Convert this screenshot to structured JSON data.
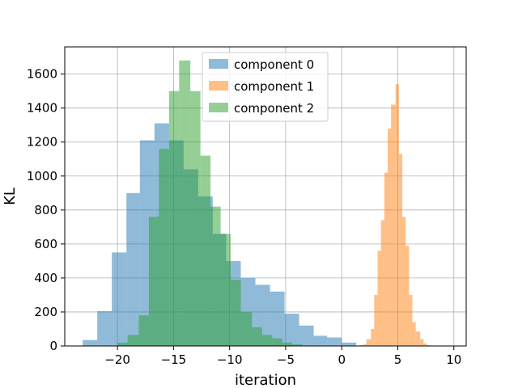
{
  "chart_data": {
    "type": "histogram",
    "xlabel": "iteration",
    "ylabel": "KL",
    "xlim": [
      -24.7,
      11.1
    ],
    "ylim": [
      0,
      1760
    ],
    "xticks": [
      -20,
      -15,
      -10,
      -5,
      0,
      5,
      10
    ],
    "yticks": [
      0,
      200,
      400,
      600,
      800,
      1000,
      1200,
      1400,
      1600
    ],
    "grid": true,
    "legend_position": "top-center",
    "series": [
      {
        "name": "component 0",
        "color": "#1f77b4",
        "opacity": 0.5,
        "bins": [
          -23.1,
          -21.8,
          -20.5,
          -19.2,
          -18.0,
          -16.7,
          -15.4,
          -14.1,
          -12.8,
          -11.5,
          -10.3,
          -9.0,
          -7.7,
          -6.4,
          -5.1,
          -3.8,
          -2.5,
          -1.3,
          0.0,
          1.3
        ],
        "counts": [
          35,
          205,
          550,
          900,
          1210,
          1310,
          1210,
          1040,
          880,
          660,
          500,
          400,
          360,
          320,
          190,
          120,
          60,
          50,
          20
        ]
      },
      {
        "name": "component 1",
        "color": "#ff7f0e",
        "opacity": 0.5,
        "bins": [
          1.6,
          1.9,
          2.2,
          2.6,
          2.9,
          3.2,
          3.5,
          3.8,
          4.1,
          4.4,
          4.8,
          5.1,
          5.4,
          5.7,
          6.0,
          6.3,
          6.6,
          7.0,
          7.3,
          7.6,
          7.9
        ],
        "counts": [
          5,
          10,
          40,
          100,
          300,
          560,
          740,
          1020,
          1280,
          1420,
          1540,
          1130,
          760,
          590,
          300,
          140,
          85,
          40,
          15,
          5
        ]
      },
      {
        "name": "component 2",
        "color": "#2ca02c",
        "opacity": 0.5,
        "bins": [
          -20.0,
          -19.1,
          -18.1,
          -17.2,
          -16.3,
          -15.4,
          -14.5,
          -13.5,
          -12.6,
          -11.7,
          -10.8,
          -9.9,
          -9.0,
          -8.0,
          -7.1,
          -6.2,
          -5.3,
          -4.4,
          -3.5
        ],
        "counts": [
          20,
          65,
          180,
          760,
          1160,
          1500,
          1680,
          1500,
          1120,
          820,
          660,
          390,
          200,
          110,
          65,
          45,
          20,
          10
        ]
      }
    ]
  }
}
